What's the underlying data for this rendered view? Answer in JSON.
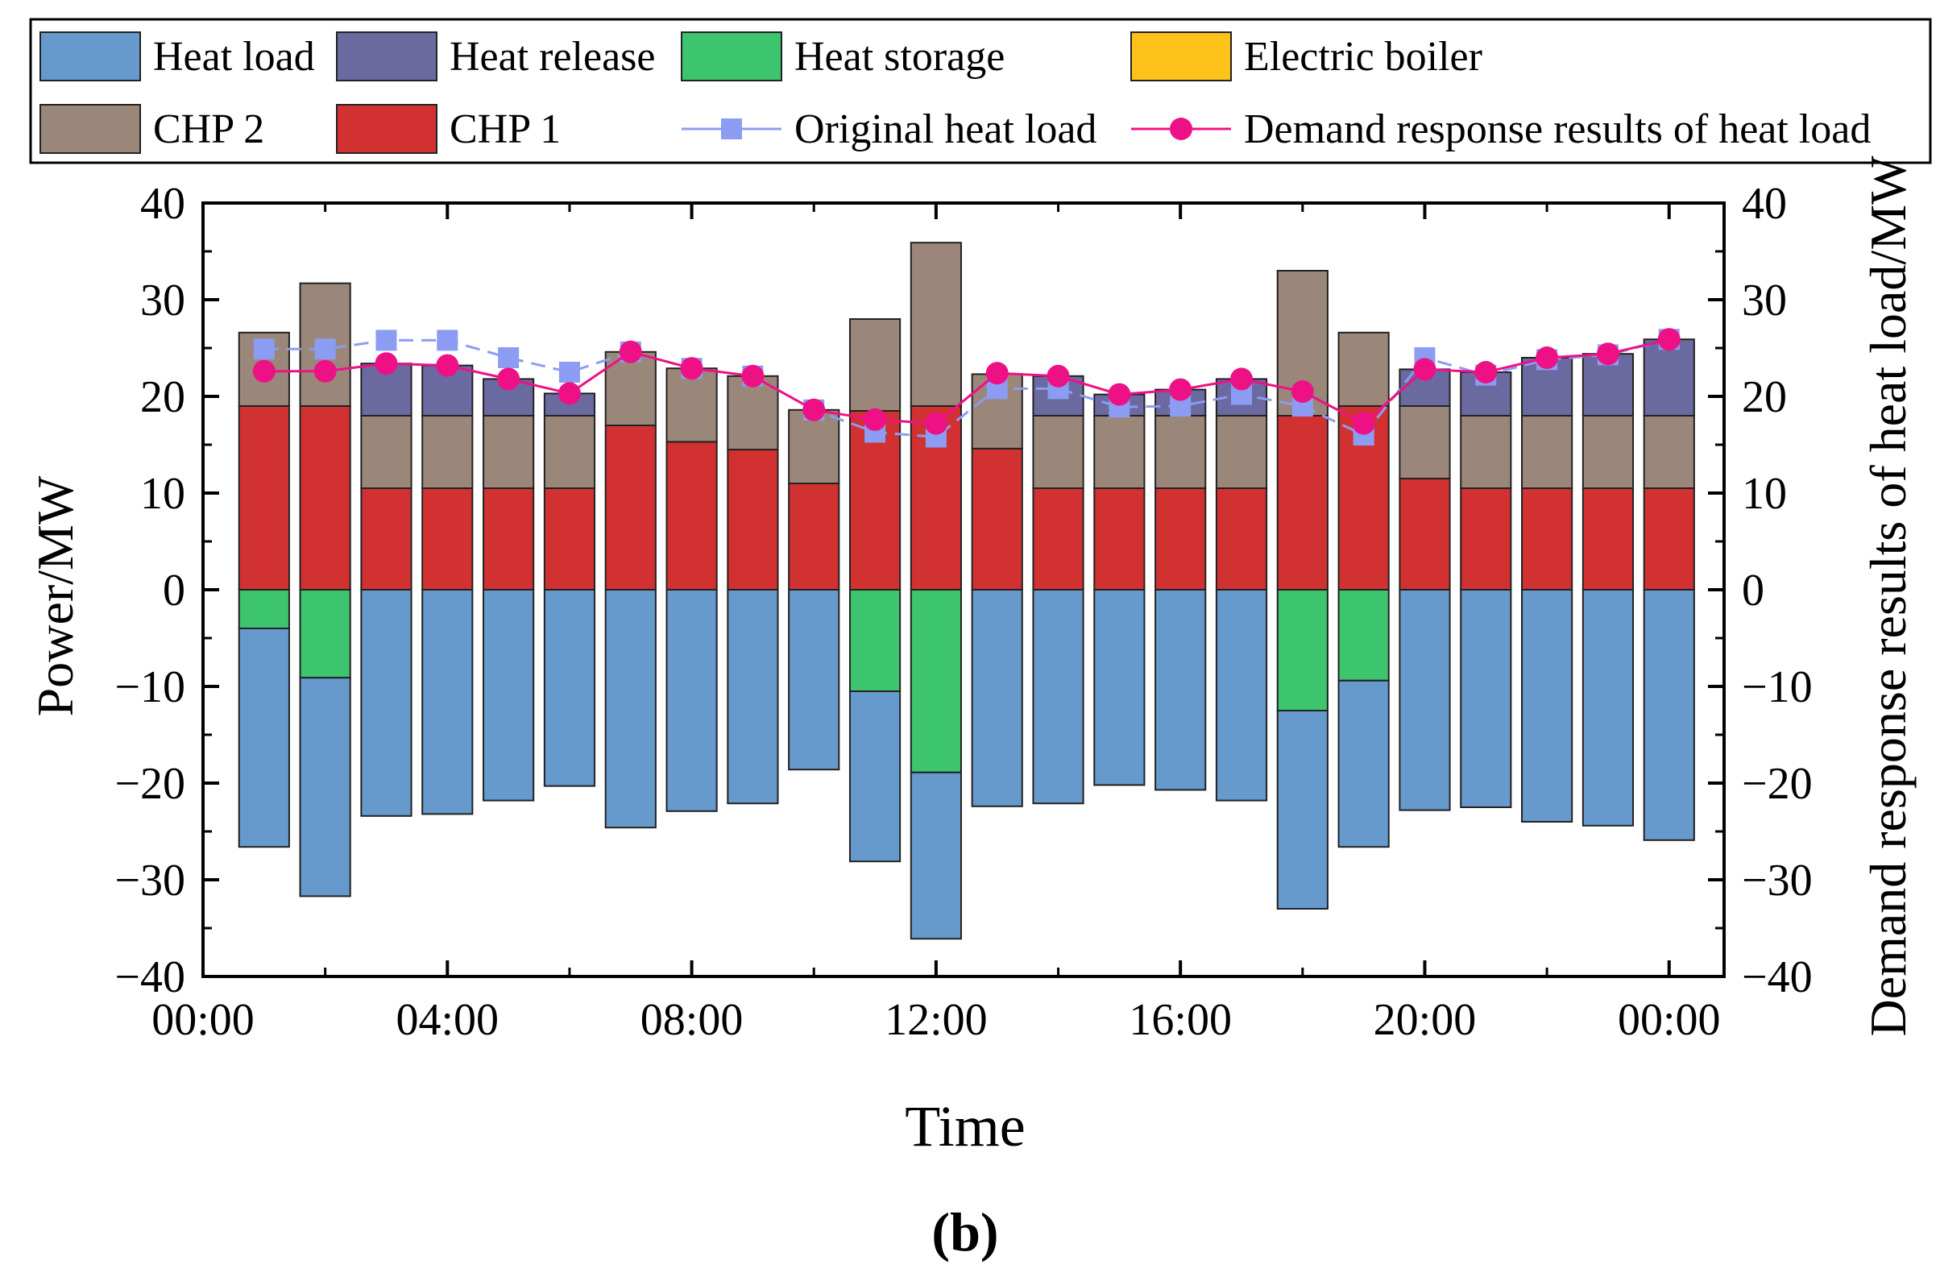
{
  "chart_data": {
    "type": "bar",
    "stacked": true,
    "xlabel": "Time",
    "ylabel": "Power/MW",
    "y2label": "Demand response results of heat load/MW",
    "ylim": [
      -40,
      40
    ],
    "y2lim": [
      -40,
      40
    ],
    "yticks": [
      -40,
      -30,
      -20,
      -10,
      0,
      10,
      20,
      30,
      40
    ],
    "ytick_labels": [
      "−40",
      "−30",
      "−20",
      "−10",
      "0",
      "10",
      "20",
      "30",
      "40"
    ],
    "xlim": [
      0,
      24.9
    ],
    "xticks": [
      0,
      4,
      8,
      12,
      16,
      20,
      24
    ],
    "xtick_labels": [
      "00:00",
      "04:00",
      "08:00",
      "12:00",
      "16:00",
      "20:00",
      "00:00"
    ],
    "caption_open": "(",
    "caption_letter": "b",
    "caption_close": ")",
    "hours": [
      1,
      2,
      3,
      4,
      5,
      6,
      7,
      8,
      9,
      10,
      11,
      12,
      13,
      14,
      15,
      16,
      17,
      18,
      19,
      20,
      21,
      22,
      23,
      24
    ],
    "series": [
      {
        "name": "Heat load",
        "kind": "bar",
        "color": "#6699cc",
        "values": [
          -22.6,
          -22.6,
          -23.4,
          -23.2,
          -21.8,
          -20.3,
          -24.6,
          -22.9,
          -22.1,
          -18.6,
          -17.6,
          -17.2,
          -22.4,
          -22.1,
          -20.2,
          -20.7,
          -21.8,
          -20.5,
          -17.2,
          -22.8,
          -22.5,
          -24.0,
          -24.4,
          -25.9
        ]
      },
      {
        "name": "Heat release",
        "kind": "bar",
        "color": "#6a6aa0",
        "values": [
          0,
          0,
          5.4,
          5.2,
          3.8,
          2.3,
          0,
          0,
          0,
          0,
          0,
          0,
          0,
          4.1,
          2.2,
          2.7,
          3.8,
          0,
          0,
          3.8,
          4.5,
          6.0,
          6.4,
          7.9
        ]
      },
      {
        "name": "Heat storage",
        "kind": "bar",
        "color": "#3cc46e",
        "values": [
          -4.0,
          -9.1,
          0,
          0,
          0,
          0,
          0,
          0,
          0,
          0,
          -10.5,
          -18.9,
          0,
          0,
          0,
          0,
          0,
          -12.5,
          -9.4,
          0,
          0,
          0,
          0,
          0
        ]
      },
      {
        "name": "Electric boiler",
        "kind": "bar",
        "color": "#ffc21a",
        "values": [
          0,
          0,
          0,
          0,
          0,
          0,
          0,
          0,
          0,
          0,
          0,
          0,
          0,
          0,
          0,
          0,
          0,
          0,
          0,
          0,
          0,
          0,
          0,
          0
        ]
      },
      {
        "name": "CHP 2",
        "kind": "bar",
        "color": "#9b877a",
        "values": [
          7.6,
          12.7,
          7.5,
          7.5,
          7.5,
          7.5,
          7.6,
          7.6,
          7.6,
          7.6,
          9.5,
          16.9,
          7.7,
          7.5,
          7.5,
          7.5,
          7.5,
          15.0,
          7.6,
          7.5,
          7.5,
          7.5,
          7.5,
          7.5
        ]
      },
      {
        "name": "CHP 1",
        "kind": "bar",
        "color": "#d13131",
        "values": [
          19.0,
          19.0,
          10.5,
          10.5,
          10.5,
          10.5,
          17.0,
          15.3,
          14.5,
          11.0,
          18.5,
          19.0,
          14.6,
          10.5,
          10.5,
          10.5,
          10.5,
          18.0,
          19.0,
          11.5,
          10.5,
          10.5,
          10.5,
          10.5
        ]
      },
      {
        "name": "Original heat load",
        "kind": "line",
        "color": "#8c9cf2",
        "marker": "square",
        "values": [
          24.9,
          24.9,
          25.8,
          25.8,
          24.0,
          22.5,
          24.6,
          22.9,
          22.1,
          18.6,
          16.3,
          15.8,
          20.8,
          20.8,
          18.9,
          19.0,
          20.2,
          19.0,
          16.0,
          24.0,
          22.2,
          23.8,
          24.3,
          25.9
        ]
      },
      {
        "name": "Demand response results of heat load",
        "kind": "line",
        "color": "#ee1186",
        "marker": "circle",
        "values": [
          22.6,
          22.6,
          23.4,
          23.2,
          21.8,
          20.3,
          24.6,
          22.9,
          22.1,
          18.6,
          17.6,
          17.2,
          22.4,
          22.1,
          20.2,
          20.7,
          21.8,
          20.5,
          17.2,
          22.8,
          22.5,
          24.0,
          24.4,
          25.9
        ]
      }
    ],
    "legend": {
      "placement": "top",
      "items": [
        {
          "label": "Heat load",
          "series": 0
        },
        {
          "label": "Heat release",
          "series": 1
        },
        {
          "label": "Heat storage",
          "series": 2
        },
        {
          "label": "Electric boiler",
          "series": 3
        },
        {
          "label": "CHP 2",
          "series": 4
        },
        {
          "label": "CHP 1",
          "series": 5
        },
        {
          "label": "Original heat load",
          "series": 6
        },
        {
          "label": "Demand response results of heat load",
          "series": 7
        }
      ]
    }
  }
}
